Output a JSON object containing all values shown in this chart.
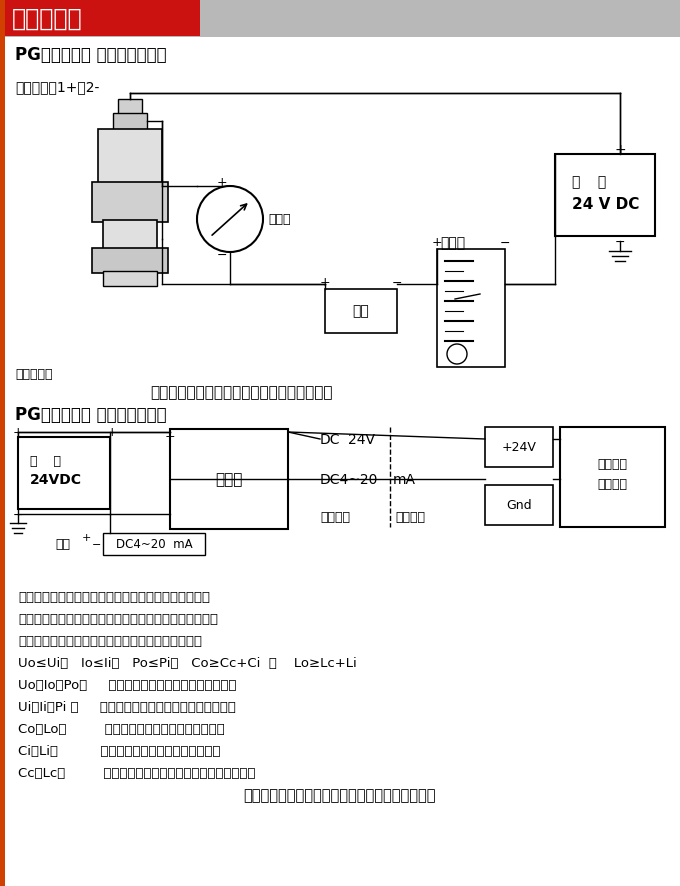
{
  "white": "#ffffff",
  "black": "#000000",
  "title_bar_text": "安装示意图",
  "section1_title": "PG压力变送器 现场连接示意图",
  "label_hermmann": "赫斯曼接头1+、2-",
  "label_ammeter": "电流表",
  "label_load": "负载",
  "label_indicator": "指示仪",
  "label_power1a": "电    源",
  "label_power1b": "24 V DC",
  "label_transmitter": "压力变送器",
  "notice1": "非本安防爆型压力变送器可以用稳压电源供电",
  "section2_title": "PG压力变送器 现场连接示意图",
  "label_power2a": "电    源",
  "label_power2b": "24VDC",
  "label_barrier": "安全栅",
  "label_dc24v": "DC  24V",
  "label_dc4_20": "DC4~20  mA",
  "label_safe_zone": "安全场所",
  "label_danger_zone": "危险场所",
  "label_plus24v": "+24V",
  "label_gnd": "Gnd",
  "label_intrinsic1": "本安型压",
  "label_intrinsic2": "力变送器",
  "label_output": "输出",
  "label_dc4_20_out": "DC4~20  mA",
  "text1": "安全栅须取得防爆合格证，使用时应按其说明书的要求",
  "text2": "进行、安全栅防爆标志必须不低于压力变送器防爆标志。",
  "text3": "所配用安全栅参数必须符合本安系统参数匹配原则：",
  "text4": "Uo≤Ui、   Io≤Ii、   Po≤Pi、   Co≥Cc+Ci  和    Lo≥Lc+Li",
  "text5": "Uo、Io、Po：     安全栅的最大输出电压、电流和功率",
  "text6": "Ui、Ii、Pi ：     压力变送器最大输入电压、电流和功率",
  "text7": "Co、Lo：         安全栅允许的最大外部电容和电感",
  "text8": "Ci、Li：          压力变送器的最大外部电容和电感",
  "text9": "Cc、Lc：         两者之间连接电缆充许总的分布电容和电感",
  "text10": "本安防爆型压力变送建议使用安全栅供电、见上图"
}
